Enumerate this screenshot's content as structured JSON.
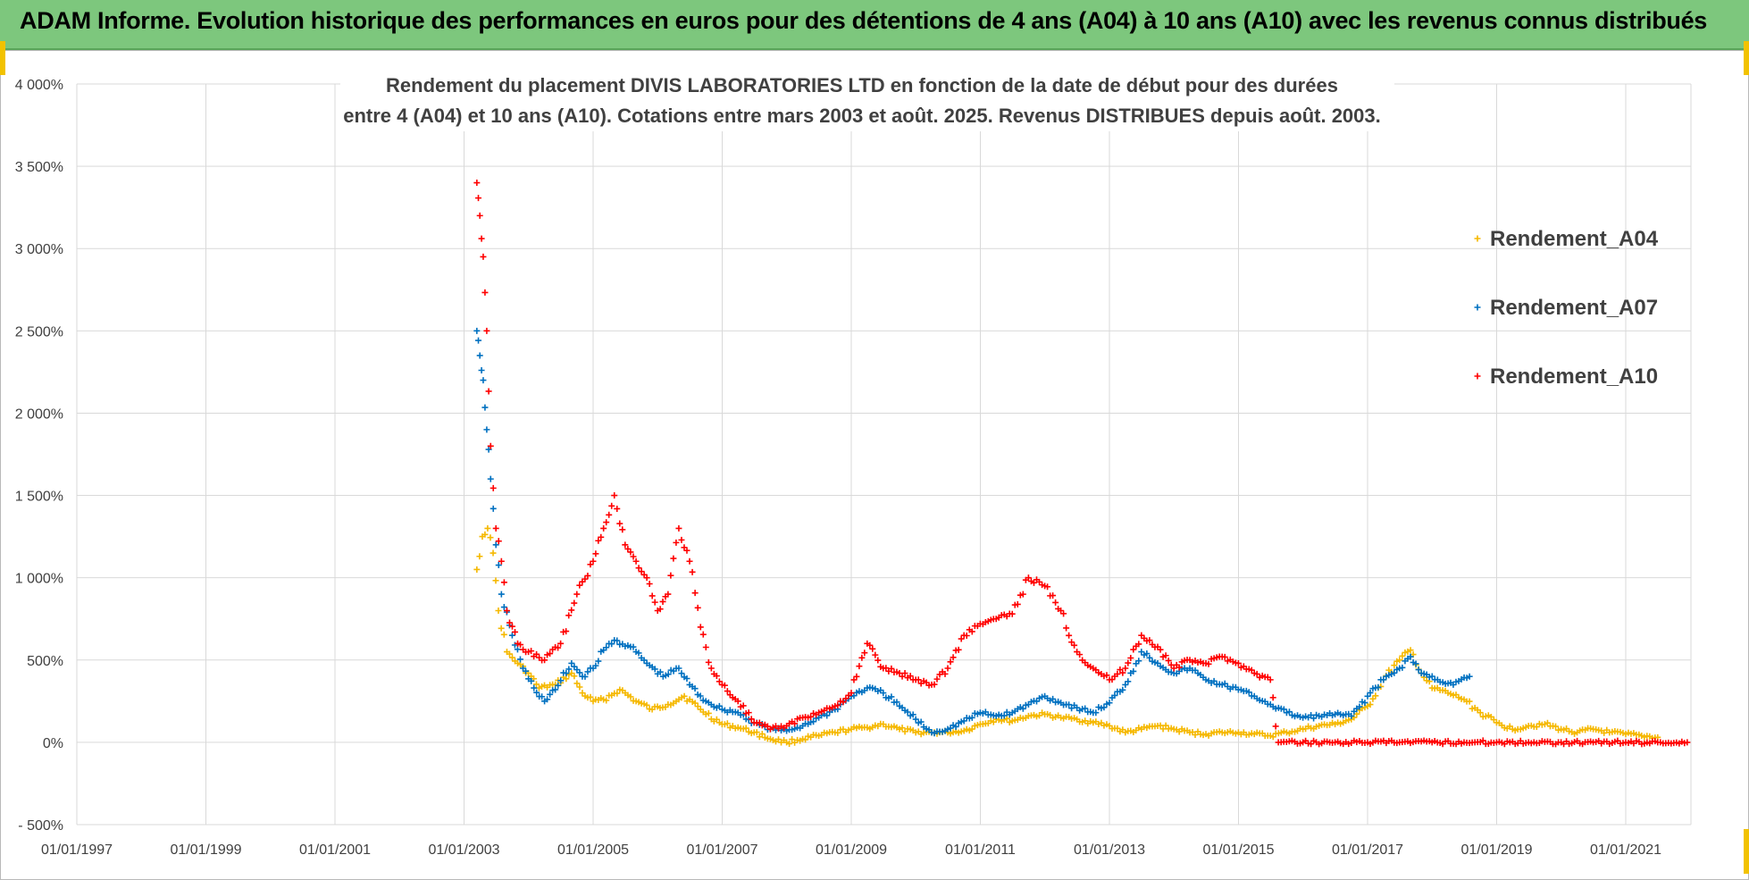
{
  "banner": {
    "title": "ADAM Informe. Evolution historique des performances en euros pour des détentions de 4 ans (A04) à 10 ans (A10) avec les revenus connus distribués"
  },
  "colors": {
    "banner": "#7dc77d",
    "grid": "#d9d9d9",
    "A04": "#f5b800",
    "A07": "#0070c0",
    "A10": "#ff0000"
  },
  "chart_data": {
    "type": "scatter",
    "title": "Rendement du placement DIVIS LABORATORIES LTD en fonction de la date de début pour des durées",
    "subtitle": "entre 4 (A04) et 10 ans (A10). Cotations entre mars 2003 et août. 2025. Revenus DISTRIBUES depuis août. 2003.",
    "xlabel": "",
    "ylabel": "",
    "x_ticks": [
      "01/01/1997",
      "01/01/1999",
      "01/01/2001",
      "01/01/2003",
      "01/01/2005",
      "01/01/2007",
      "01/01/2009",
      "01/01/2011",
      "01/01/2013",
      "01/01/2015",
      "01/01/2017",
      "01/01/2019",
      "01/01/2021"
    ],
    "y_ticks": [
      "4 000%",
      "3 500%",
      "3 000%",
      "2 500%",
      "2 000%",
      "1 500%",
      "1 000%",
      "500%",
      "0%",
      "- 500%"
    ],
    "xlim": [
      "1997-01-01",
      "2022-01-01"
    ],
    "ylim": [
      -500,
      4000
    ],
    "grid": true,
    "legend_position": "right",
    "series": [
      {
        "name": "Rendement_A04",
        "key": "A04",
        "points": [
          [
            "2003-03-15",
            1050
          ],
          [
            "2003-04-15",
            1250
          ],
          [
            "2003-05-15",
            1300
          ],
          [
            "2003-06-15",
            1150
          ],
          [
            "2003-07-15",
            800
          ],
          [
            "2003-09-01",
            550
          ],
          [
            "2003-11-01",
            480
          ],
          [
            "2004-01-01",
            420
          ],
          [
            "2004-03-01",
            330
          ],
          [
            "2004-06-01",
            350
          ],
          [
            "2004-09-01",
            420
          ],
          [
            "2004-11-01",
            300
          ],
          [
            "2005-01-01",
            250
          ],
          [
            "2005-03-01",
            260
          ],
          [
            "2005-06-01",
            320
          ],
          [
            "2005-09-01",
            250
          ],
          [
            "2005-12-01",
            200
          ],
          [
            "2006-03-01",
            230
          ],
          [
            "2006-06-01",
            280
          ],
          [
            "2006-09-01",
            200
          ],
          [
            "2007-01-01",
            110
          ],
          [
            "2007-04-01",
            90
          ],
          [
            "2007-07-01",
            60
          ],
          [
            "2007-10-01",
            20
          ],
          [
            "2008-01-01",
            0
          ],
          [
            "2008-04-01",
            20
          ],
          [
            "2008-07-01",
            40
          ],
          [
            "2008-10-01",
            60
          ],
          [
            "2009-01-01",
            80
          ],
          [
            "2009-04-01",
            90
          ],
          [
            "2009-07-01",
            110
          ],
          [
            "2009-10-01",
            80
          ],
          [
            "2010-01-01",
            60
          ],
          [
            "2010-04-01",
            60
          ],
          [
            "2010-07-01",
            60
          ],
          [
            "2010-10-01",
            70
          ],
          [
            "2011-01-01",
            110
          ],
          [
            "2011-04-01",
            140
          ],
          [
            "2011-07-01",
            130
          ],
          [
            "2011-10-01",
            160
          ],
          [
            "2012-01-01",
            170
          ],
          [
            "2012-04-01",
            150
          ],
          [
            "2012-07-01",
            140
          ],
          [
            "2012-10-01",
            120
          ],
          [
            "2013-01-01",
            100
          ],
          [
            "2013-04-01",
            60
          ],
          [
            "2013-07-01",
            80
          ],
          [
            "2013-10-01",
            100
          ],
          [
            "2014-01-01",
            80
          ],
          [
            "2014-04-01",
            60
          ],
          [
            "2014-07-01",
            50
          ],
          [
            "2014-10-01",
            60
          ],
          [
            "2015-01-01",
            60
          ],
          [
            "2015-04-01",
            50
          ],
          [
            "2015-07-01",
            40
          ],
          [
            "2015-10-01",
            60
          ],
          [
            "2016-01-01",
            80
          ],
          [
            "2016-04-01",
            100
          ],
          [
            "2016-07-01",
            110
          ],
          [
            "2016-10-01",
            140
          ],
          [
            "2017-01-01",
            220
          ],
          [
            "2017-04-01",
            380
          ],
          [
            "2017-07-01",
            500
          ],
          [
            "2017-09-01",
            560
          ],
          [
            "2017-11-01",
            420
          ],
          [
            "2018-01-01",
            330
          ],
          [
            "2018-04-01",
            300
          ],
          [
            "2018-07-01",
            260
          ],
          [
            "2018-10-01",
            180
          ],
          [
            "2019-01-01",
            120
          ],
          [
            "2019-04-01",
            80
          ],
          [
            "2019-07-01",
            100
          ],
          [
            "2019-10-01",
            110
          ],
          [
            "2020-01-01",
            80
          ],
          [
            "2020-04-01",
            60
          ],
          [
            "2020-07-01",
            80
          ],
          [
            "2020-10-01",
            60
          ],
          [
            "2021-01-01",
            50
          ],
          [
            "2021-04-01",
            40
          ],
          [
            "2021-07-01",
            30
          ]
        ]
      },
      {
        "name": "Rendement_A07",
        "key": "A07",
        "points": [
          [
            "2003-03-15",
            2500
          ],
          [
            "2003-04-01",
            2350
          ],
          [
            "2003-04-20",
            2200
          ],
          [
            "2003-05-10",
            1900
          ],
          [
            "2003-06-01",
            1600
          ],
          [
            "2003-07-01",
            1200
          ],
          [
            "2003-08-01",
            900
          ],
          [
            "2003-10-01",
            650
          ],
          [
            "2003-12-01",
            450
          ],
          [
            "2004-02-01",
            330
          ],
          [
            "2004-04-01",
            250
          ],
          [
            "2004-06-01",
            320
          ],
          [
            "2004-09-01",
            480
          ],
          [
            "2004-11-01",
            400
          ],
          [
            "2005-01-01",
            450
          ],
          [
            "2005-03-01",
            560
          ],
          [
            "2005-05-01",
            620
          ],
          [
            "2005-08-01",
            580
          ],
          [
            "2005-11-01",
            480
          ],
          [
            "2006-02-01",
            400
          ],
          [
            "2006-05-01",
            450
          ],
          [
            "2006-07-01",
            350
          ],
          [
            "2006-10-01",
            250
          ],
          [
            "2007-01-01",
            200
          ],
          [
            "2007-04-01",
            180
          ],
          [
            "2007-07-01",
            120
          ],
          [
            "2007-10-01",
            80
          ],
          [
            "2008-01-01",
            70
          ],
          [
            "2008-04-01",
            100
          ],
          [
            "2008-07-01",
            150
          ],
          [
            "2008-10-01",
            200
          ],
          [
            "2009-01-01",
            280
          ],
          [
            "2009-04-01",
            330
          ],
          [
            "2009-07-01",
            300
          ],
          [
            "2009-10-01",
            220
          ],
          [
            "2010-01-01",
            140
          ],
          [
            "2010-04-01",
            60
          ],
          [
            "2010-07-01",
            80
          ],
          [
            "2010-10-01",
            130
          ],
          [
            "2011-01-01",
            180
          ],
          [
            "2011-04-01",
            160
          ],
          [
            "2011-07-01",
            180
          ],
          [
            "2011-10-01",
            230
          ],
          [
            "2012-01-01",
            280
          ],
          [
            "2012-04-01",
            240
          ],
          [
            "2012-07-01",
            210
          ],
          [
            "2012-10-01",
            180
          ],
          [
            "2013-01-01",
            240
          ],
          [
            "2013-04-01",
            350
          ],
          [
            "2013-07-01",
            550
          ],
          [
            "2013-10-01",
            480
          ],
          [
            "2014-01-01",
            420
          ],
          [
            "2014-04-01",
            450
          ],
          [
            "2014-07-01",
            380
          ],
          [
            "2014-10-01",
            350
          ],
          [
            "2015-01-01",
            320
          ],
          [
            "2015-04-01",
            280
          ],
          [
            "2015-07-01",
            230
          ],
          [
            "2015-10-01",
            180
          ],
          [
            "2016-01-01",
            150
          ],
          [
            "2016-04-01",
            160
          ],
          [
            "2016-07-01",
            170
          ],
          [
            "2016-10-01",
            160
          ],
          [
            "2017-01-01",
            280
          ],
          [
            "2017-04-01",
            380
          ],
          [
            "2017-07-01",
            450
          ],
          [
            "2017-09-01",
            520
          ],
          [
            "2017-11-01",
            420
          ],
          [
            "2018-02-01",
            380
          ],
          [
            "2018-05-01",
            350
          ],
          [
            "2018-08-01",
            400
          ]
        ]
      },
      {
        "name": "Rendement_A10",
        "key": "A10",
        "points": [
          [
            "2003-03-15",
            3400
          ],
          [
            "2003-04-01",
            3200
          ],
          [
            "2003-04-20",
            2950
          ],
          [
            "2003-05-10",
            2500
          ],
          [
            "2003-06-01",
            1800
          ],
          [
            "2003-07-01",
            1300
          ],
          [
            "2003-08-01",
            1100
          ],
          [
            "2003-09-01",
            800
          ],
          [
            "2003-11-01",
            600
          ],
          [
            "2004-01-01",
            550
          ],
          [
            "2004-04-01",
            500
          ],
          [
            "2004-07-01",
            600
          ],
          [
            "2004-10-01",
            900
          ],
          [
            "2005-01-01",
            1100
          ],
          [
            "2005-03-01",
            1300
          ],
          [
            "2005-05-01",
            1500
          ],
          [
            "2005-07-01",
            1200
          ],
          [
            "2005-09-01",
            1100
          ],
          [
            "2005-11-01",
            1000
          ],
          [
            "2006-01-01",
            800
          ],
          [
            "2006-03-01",
            900
          ],
          [
            "2006-05-01",
            1300
          ],
          [
            "2006-07-01",
            1100
          ],
          [
            "2006-09-01",
            700
          ],
          [
            "2006-11-01",
            450
          ],
          [
            "2007-01-01",
            350
          ],
          [
            "2007-04-01",
            250
          ],
          [
            "2007-07-01",
            120
          ],
          [
            "2007-10-01",
            80
          ],
          [
            "2008-01-01",
            100
          ],
          [
            "2008-04-01",
            150
          ],
          [
            "2008-07-01",
            180
          ],
          [
            "2008-10-01",
            220
          ],
          [
            "2009-01-01",
            300
          ],
          [
            "2009-04-01",
            600
          ],
          [
            "2009-07-01",
            450
          ],
          [
            "2009-10-01",
            420
          ],
          [
            "2010-01-01",
            380
          ],
          [
            "2010-04-01",
            350
          ],
          [
            "2010-07-01",
            450
          ],
          [
            "2010-10-01",
            650
          ],
          [
            "2011-01-01",
            720
          ],
          [
            "2011-04-01",
            750
          ],
          [
            "2011-07-01",
            780
          ],
          [
            "2011-10-01",
            1000
          ],
          [
            "2012-01-01",
            950
          ],
          [
            "2012-04-01",
            800
          ],
          [
            "2012-07-01",
            550
          ],
          [
            "2012-10-01",
            450
          ],
          [
            "2013-01-01",
            380
          ],
          [
            "2013-04-01",
            450
          ],
          [
            "2013-07-01",
            650
          ],
          [
            "2013-10-01",
            580
          ],
          [
            "2014-01-01",
            450
          ],
          [
            "2014-04-01",
            500
          ],
          [
            "2014-07-01",
            480
          ],
          [
            "2014-10-01",
            520
          ],
          [
            "2015-01-01",
            480
          ],
          [
            "2015-04-01",
            420
          ],
          [
            "2015-07-01",
            380
          ],
          [
            "2015-08-15",
            0
          ],
          [
            "2016-01-01",
            0
          ],
          [
            "2016-07-01",
            0
          ],
          [
            "2017-01-01",
            0
          ],
          [
            "2017-07-01",
            0
          ],
          [
            "2018-01-01",
            0
          ],
          [
            "2018-07-01",
            0
          ],
          [
            "2019-01-01",
            0
          ],
          [
            "2019-07-01",
            0
          ],
          [
            "2020-01-01",
            0
          ],
          [
            "2020-07-01",
            0
          ],
          [
            "2021-01-01",
            0
          ],
          [
            "2021-07-01",
            0
          ],
          [
            "2021-12-15",
            0
          ]
        ]
      }
    ]
  }
}
